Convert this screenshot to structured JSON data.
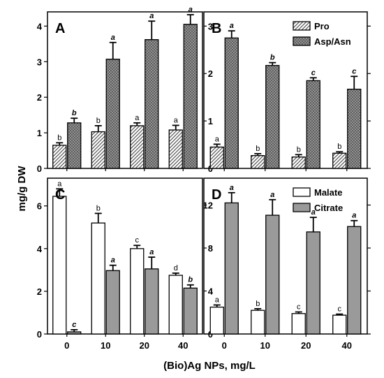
{
  "chart_data": {
    "type": "bar",
    "ylabel": "mg/g DW",
    "xlabel": "(Bio)Ag NPs, mg/L",
    "categories": [
      "0",
      "10",
      "20",
      "40"
    ],
    "panels": [
      {
        "id": "A",
        "ylim": [
          0,
          4.4
        ],
        "yticks": [
          "0",
          "1",
          "2",
          "3",
          "4"
        ],
        "show_x_ticks": false,
        "legend": false,
        "series": [
          {
            "name": "Pro",
            "pattern": "hatch",
            "values": [
              0.65,
              1.03,
              1.2,
              1.08
            ],
            "errors": [
              0.07,
              0.17,
              0.08,
              0.13
            ],
            "sig": [
              "b",
              "b",
              "a",
              "a"
            ],
            "sig_italic": false
          },
          {
            "name": "Asp/Asn",
            "pattern": "dots",
            "values": [
              1.28,
              3.07,
              3.62,
              4.05
            ],
            "errors": [
              0.13,
              0.47,
              0.52,
              0.27
            ],
            "sig": [
              "b",
              "a",
              "a",
              "a"
            ],
            "sig_italic": true
          }
        ]
      },
      {
        "id": "B",
        "ylim": [
          0,
          3.3
        ],
        "yticks": [
          "0",
          "1",
          "2",
          "3"
        ],
        "show_x_ticks": false,
        "legend": true,
        "series": [
          {
            "name": "Pro",
            "pattern": "hatch",
            "values": [
              0.45,
              0.27,
              0.24,
              0.32
            ],
            "errors": [
              0.06,
              0.04,
              0.05,
              0.03
            ],
            "sig": [
              "a",
              "b",
              "b",
              "b"
            ],
            "sig_italic": false
          },
          {
            "name": "Asp/Asn",
            "pattern": "dots",
            "values": [
              2.75,
              2.17,
              1.85,
              1.67
            ],
            "errors": [
              0.15,
              0.06,
              0.06,
              0.27
            ],
            "sig": [
              "a",
              "b",
              "c",
              "c"
            ],
            "sig_italic": true
          }
        ]
      },
      {
        "id": "C",
        "ylim": [
          0,
          7.3
        ],
        "yticks": [
          "0",
          "2",
          "4",
          "6"
        ],
        "show_x_ticks": true,
        "legend": false,
        "series": [
          {
            "name": "Malate",
            "pattern": "white",
            "values": [
              6.45,
              5.2,
              4.0,
              2.75
            ],
            "errors": [
              0.35,
              0.45,
              0.15,
              0.1
            ],
            "sig": [
              "a",
              "b",
              "c",
              "d"
            ],
            "sig_italic": false
          },
          {
            "name": "Citrate",
            "pattern": "gray",
            "values": [
              0.1,
              2.97,
              3.05,
              2.15
            ],
            "errors": [
              0.1,
              0.25,
              0.55,
              0.15
            ],
            "sig": [
              "c",
              "a",
              "a",
              "b"
            ],
            "sig_italic": true
          }
        ]
      },
      {
        "id": "D",
        "ylim": [
          0,
          14.5
        ],
        "yticks": [
          "0",
          "4",
          "8",
          "12"
        ],
        "show_x_ticks": true,
        "legend": true,
        "series": [
          {
            "name": "Malate",
            "pattern": "white",
            "values": [
              2.5,
              2.2,
              1.9,
              1.75
            ],
            "errors": [
              0.2,
              0.15,
              0.15,
              0.1
            ],
            "sig": [
              "a",
              "b",
              "c",
              "c"
            ],
            "sig_italic": false
          },
          {
            "name": "Citrate",
            "pattern": "gray",
            "values": [
              12.2,
              11.05,
              9.5,
              10.0
            ],
            "errors": [
              0.95,
              1.45,
              1.35,
              0.55
            ],
            "sig": [
              "a",
              "a",
              "a",
              "a"
            ],
            "sig_italic": true
          }
        ]
      }
    ]
  }
}
